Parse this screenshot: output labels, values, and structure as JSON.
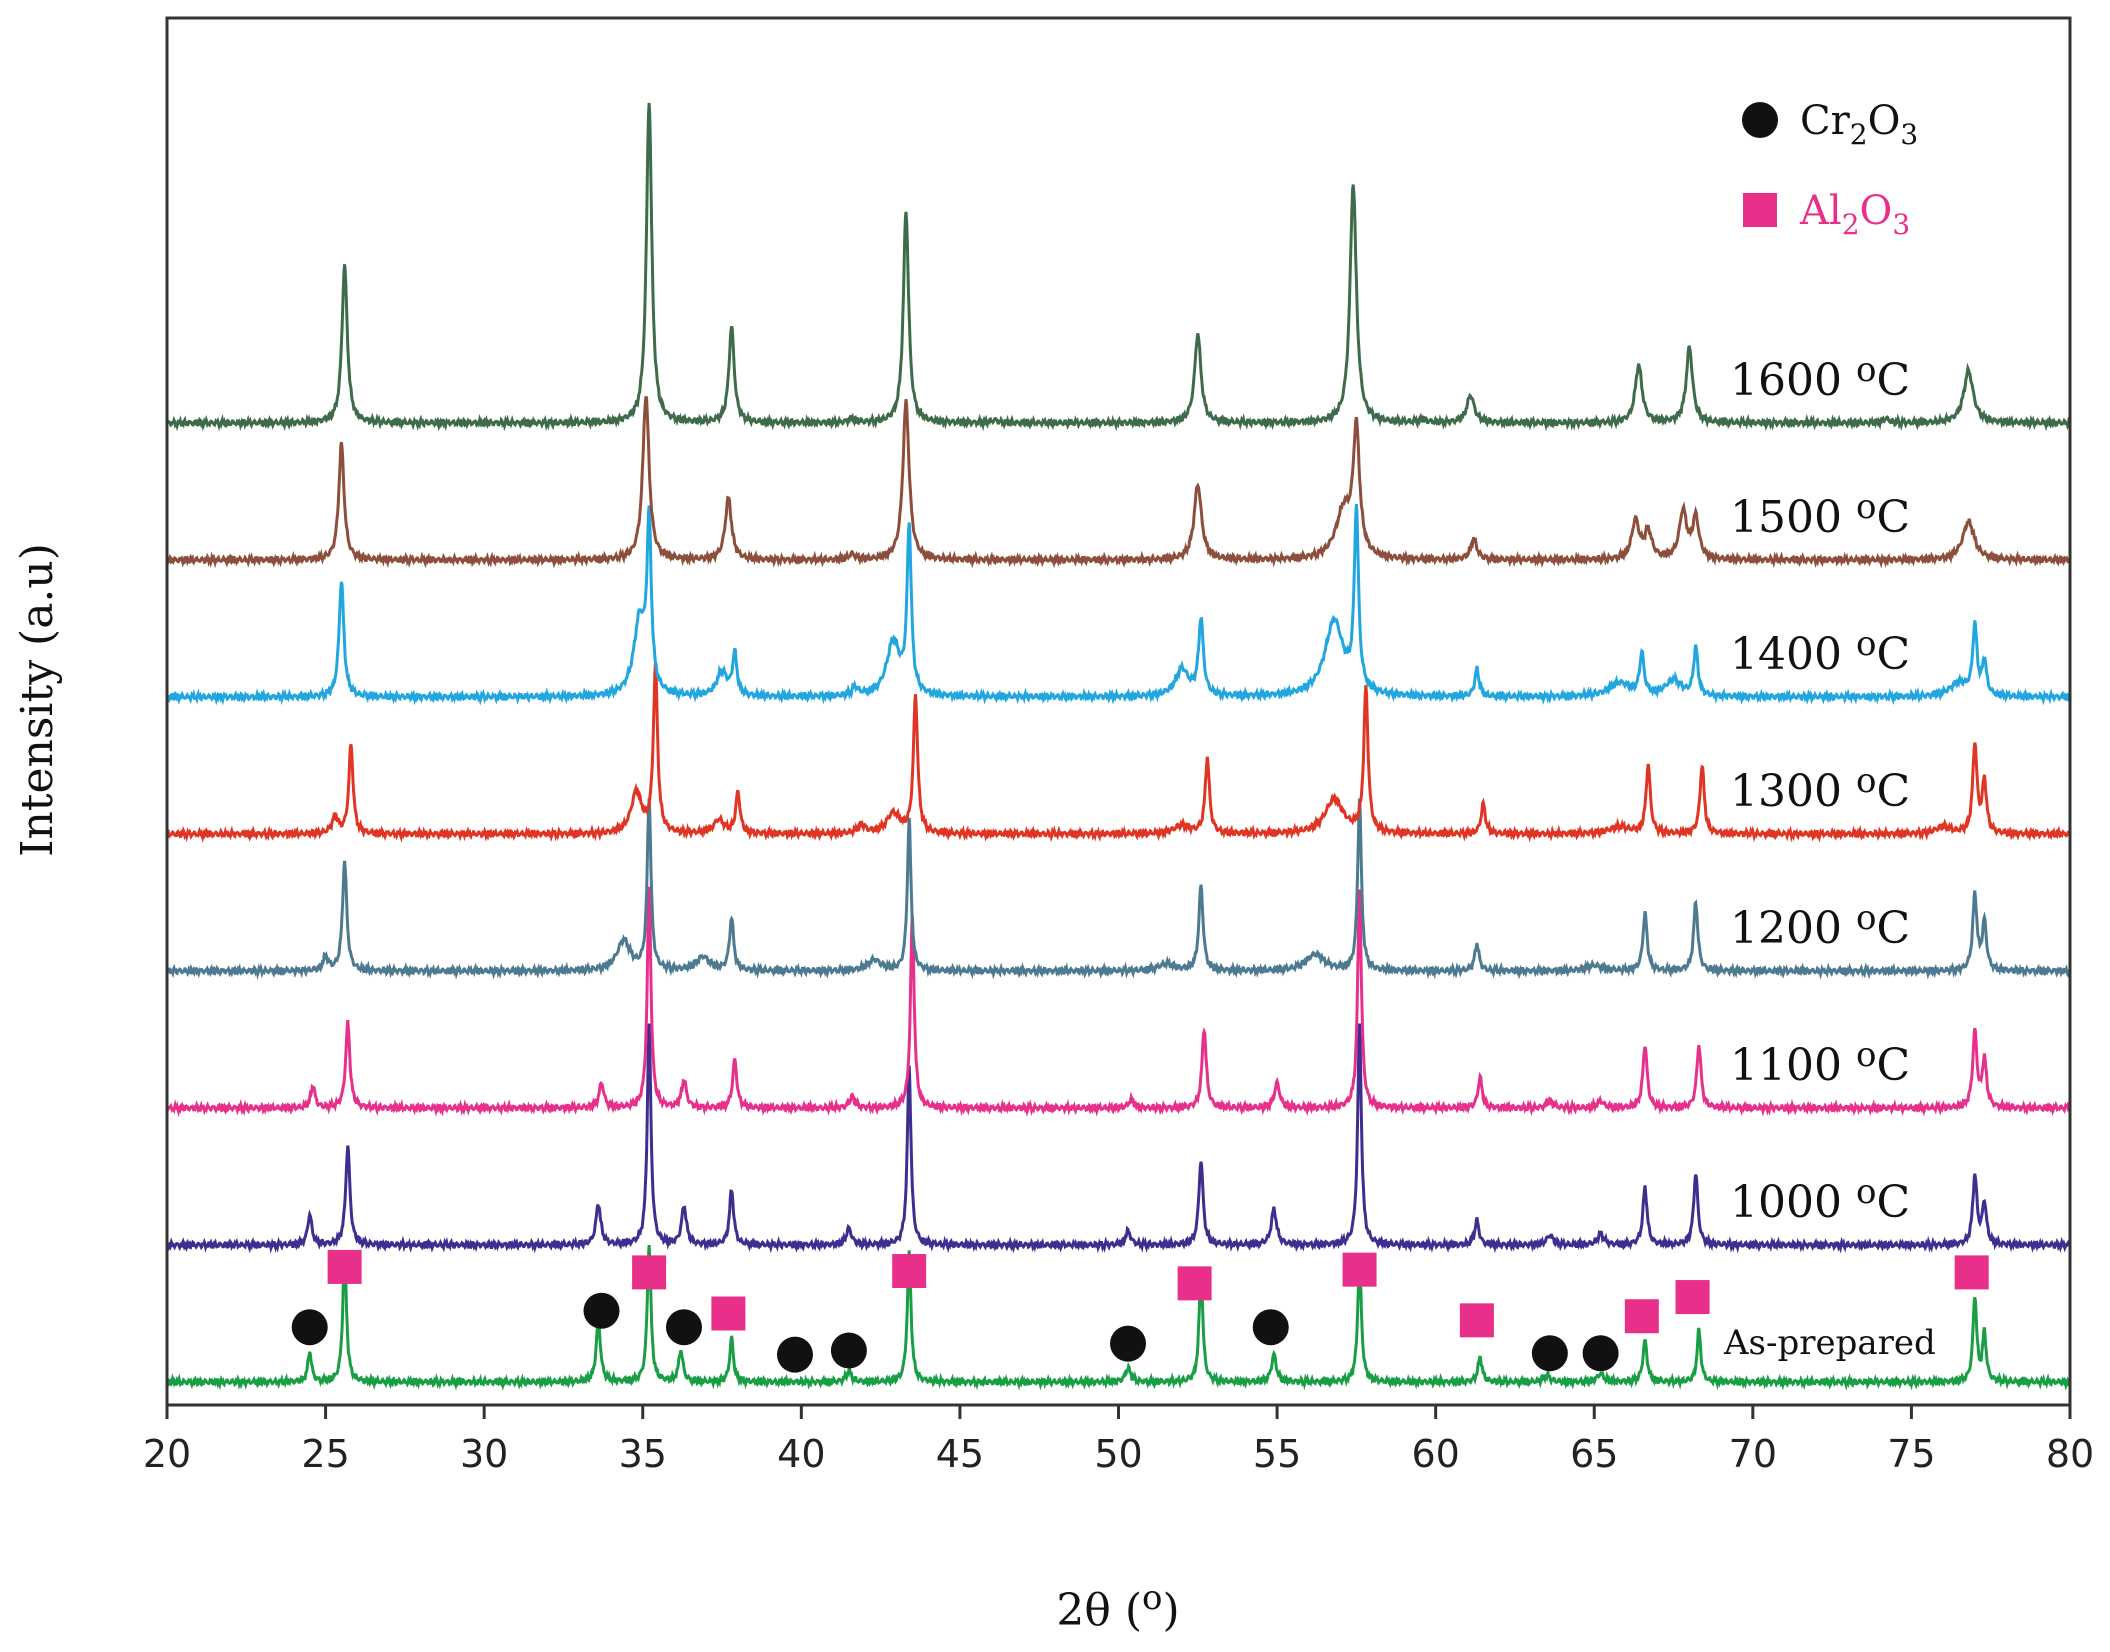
{
  "chart_data": {
    "type": "line",
    "title": "",
    "xlabel": "2θ (o)",
    "ylabel": "Intensity (a.u)",
    "xlim": [
      20,
      80
    ],
    "xticks": [
      20,
      25,
      30,
      35,
      40,
      45,
      50,
      55,
      60,
      65,
      70,
      75,
      80
    ],
    "ylim": [
      0,
      9.5
    ],
    "grid": false,
    "legend": {
      "position": "top-right",
      "entries": [
        {
          "marker": "circle",
          "color": "#111111",
          "base": "Cr",
          "sub1": "2",
          "mid": "O",
          "sub2": "3"
        },
        {
          "marker": "square",
          "color": "#e8308a",
          "base": "Al",
          "sub1": "2",
          "mid": "O",
          "sub2": "3"
        }
      ]
    },
    "series": [
      {
        "name": "As-prepared",
        "label": "As-prepared",
        "color": "#1a9e45",
        "offset": 0.0,
        "peaks": [
          [
            24.5,
            0.22,
            0.07
          ],
          [
            25.6,
            0.95,
            0.07
          ],
          [
            33.6,
            0.45,
            0.08
          ],
          [
            35.2,
            1.0,
            0.07
          ],
          [
            36.2,
            0.23,
            0.08
          ],
          [
            37.8,
            0.32,
            0.07
          ],
          [
            41.5,
            0.08,
            0.1
          ],
          [
            43.4,
            0.95,
            0.07
          ],
          [
            50.3,
            0.1,
            0.1
          ],
          [
            52.6,
            0.82,
            0.07
          ],
          [
            54.9,
            0.2,
            0.09
          ],
          [
            57.6,
            0.9,
            0.07
          ],
          [
            61.4,
            0.18,
            0.08
          ],
          [
            63.5,
            0.05,
            0.12
          ],
          [
            65.2,
            0.06,
            0.12
          ],
          [
            66.6,
            0.3,
            0.08
          ],
          [
            68.3,
            0.38,
            0.07
          ],
          [
            77.0,
            0.62,
            0.07
          ],
          [
            77.3,
            0.35,
            0.07
          ]
        ]
      },
      {
        "name": "1000 oC",
        "label": "1000",
        "unit": "oC",
        "color": "#3d2f8f",
        "offset": 1.0,
        "peaks": [
          [
            24.5,
            0.22,
            0.08
          ],
          [
            25.7,
            0.72,
            0.08
          ],
          [
            33.6,
            0.3,
            0.09
          ],
          [
            35.2,
            1.6,
            0.07
          ],
          [
            36.3,
            0.28,
            0.09
          ],
          [
            37.8,
            0.4,
            0.08
          ],
          [
            41.5,
            0.12,
            0.1
          ],
          [
            43.4,
            1.3,
            0.07
          ],
          [
            50.3,
            0.1,
            0.1
          ],
          [
            52.6,
            0.62,
            0.08
          ],
          [
            54.9,
            0.26,
            0.1
          ],
          [
            57.6,
            1.6,
            0.07
          ],
          [
            61.3,
            0.18,
            0.08
          ],
          [
            63.6,
            0.07,
            0.12
          ],
          [
            65.2,
            0.08,
            0.12
          ],
          [
            66.6,
            0.42,
            0.08
          ],
          [
            68.2,
            0.52,
            0.08
          ],
          [
            77.0,
            0.5,
            0.08
          ],
          [
            77.3,
            0.3,
            0.08
          ]
        ]
      },
      {
        "name": "1100 oC",
        "label": "1100",
        "unit": "oC",
        "color": "#e6308c",
        "offset": 2.0,
        "peaks": [
          [
            24.6,
            0.16,
            0.08
          ],
          [
            25.7,
            0.62,
            0.08
          ],
          [
            33.7,
            0.18,
            0.09
          ],
          [
            35.2,
            1.6,
            0.07
          ],
          [
            36.3,
            0.2,
            0.09
          ],
          [
            37.9,
            0.35,
            0.08
          ],
          [
            41.6,
            0.08,
            0.1
          ],
          [
            43.5,
            1.4,
            0.07
          ],
          [
            50.4,
            0.06,
            0.1
          ],
          [
            52.7,
            0.58,
            0.08
          ],
          [
            55.0,
            0.18,
            0.1
          ],
          [
            57.6,
            1.6,
            0.07
          ],
          [
            61.4,
            0.22,
            0.08
          ],
          [
            63.6,
            0.05,
            0.12
          ],
          [
            65.2,
            0.05,
            0.12
          ],
          [
            66.6,
            0.46,
            0.08
          ],
          [
            68.3,
            0.46,
            0.08
          ],
          [
            77.0,
            0.55,
            0.08
          ],
          [
            77.3,
            0.35,
            0.08
          ]
        ]
      },
      {
        "name": "1200 oC",
        "label": "1200",
        "unit": "oC",
        "color": "#4d7a91",
        "offset": 3.0,
        "peaks": [
          [
            25.0,
            0.1,
            0.1
          ],
          [
            25.6,
            0.8,
            0.08
          ],
          [
            34.4,
            0.22,
            0.25
          ],
          [
            35.2,
            1.25,
            0.07
          ],
          [
            36.9,
            0.1,
            0.25
          ],
          [
            37.8,
            0.38,
            0.08
          ],
          [
            42.3,
            0.08,
            0.25
          ],
          [
            43.4,
            1.1,
            0.07
          ],
          [
            51.5,
            0.05,
            0.3
          ],
          [
            52.6,
            0.62,
            0.08
          ],
          [
            56.2,
            0.12,
            0.35
          ],
          [
            57.6,
            1.25,
            0.07
          ],
          [
            61.3,
            0.2,
            0.08
          ],
          [
            65.0,
            0.04,
            0.3
          ],
          [
            66.6,
            0.42,
            0.08
          ],
          [
            68.2,
            0.5,
            0.08
          ],
          [
            77.0,
            0.55,
            0.08
          ],
          [
            77.3,
            0.35,
            0.08
          ]
        ]
      },
      {
        "name": "1300 oC",
        "label": "1300",
        "unit": "oC",
        "color": "#e03525",
        "offset": 4.0,
        "peaks": [
          [
            25.3,
            0.12,
            0.12
          ],
          [
            25.8,
            0.65,
            0.08
          ],
          [
            34.8,
            0.3,
            0.2
          ],
          [
            35.4,
            1.2,
            0.08
          ],
          [
            37.4,
            0.1,
            0.2
          ],
          [
            38.0,
            0.3,
            0.08
          ],
          [
            41.9,
            0.06,
            0.15
          ],
          [
            42.9,
            0.15,
            0.25
          ],
          [
            43.6,
            1.0,
            0.08
          ],
          [
            52.0,
            0.06,
            0.3
          ],
          [
            52.8,
            0.55,
            0.08
          ],
          [
            56.8,
            0.25,
            0.35
          ],
          [
            57.8,
            1.05,
            0.08
          ],
          [
            61.5,
            0.22,
            0.08
          ],
          [
            65.8,
            0.05,
            0.4
          ],
          [
            66.7,
            0.5,
            0.08
          ],
          [
            68.4,
            0.5,
            0.08
          ],
          [
            76.0,
            0.05,
            0.3
          ],
          [
            77.0,
            0.65,
            0.08
          ],
          [
            77.3,
            0.38,
            0.08
          ]
        ]
      },
      {
        "name": "1400 oC",
        "label": "1400",
        "unit": "oC",
        "color": "#22a6e0",
        "offset": 5.0,
        "peaks": [
          [
            25.5,
            0.85,
            0.09
          ],
          [
            34.9,
            0.55,
            0.22
          ],
          [
            35.2,
            1.2,
            0.08
          ],
          [
            37.5,
            0.18,
            0.2
          ],
          [
            37.9,
            0.3,
            0.08
          ],
          [
            41.7,
            0.06,
            0.12
          ],
          [
            42.9,
            0.4,
            0.25
          ],
          [
            43.4,
            1.2,
            0.08
          ],
          [
            52.0,
            0.2,
            0.25
          ],
          [
            52.6,
            0.55,
            0.09
          ],
          [
            56.8,
            0.55,
            0.35
          ],
          [
            57.5,
            1.3,
            0.08
          ],
          [
            61.3,
            0.2,
            0.08
          ],
          [
            65.8,
            0.1,
            0.4
          ],
          [
            66.5,
            0.3,
            0.08
          ],
          [
            67.5,
            0.12,
            0.3
          ],
          [
            68.2,
            0.35,
            0.08
          ],
          [
            76.5,
            0.1,
            0.35
          ],
          [
            77.0,
            0.5,
            0.08
          ],
          [
            77.3,
            0.25,
            0.08
          ]
        ]
      },
      {
        "name": "1500 oC",
        "label": "1500",
        "unit": "oC",
        "color": "#8d4f3c",
        "offset": 6.0,
        "peaks": [
          [
            25.5,
            0.85,
            0.1
          ],
          [
            35.1,
            1.2,
            0.12
          ],
          [
            37.7,
            0.45,
            0.12
          ],
          [
            41.6,
            0.04,
            0.12
          ],
          [
            43.3,
            1.15,
            0.12
          ],
          [
            52.5,
            0.55,
            0.14
          ],
          [
            57.1,
            0.35,
            0.3
          ],
          [
            57.5,
            0.9,
            0.12
          ],
          [
            61.2,
            0.15,
            0.12
          ],
          [
            66.3,
            0.28,
            0.14
          ],
          [
            66.7,
            0.2,
            0.14
          ],
          [
            67.8,
            0.35,
            0.14
          ],
          [
            68.2,
            0.3,
            0.12
          ],
          [
            76.8,
            0.28,
            0.22
          ]
        ]
      },
      {
        "name": "1600 oC",
        "label": "1600",
        "unit": "oC",
        "color": "#3e6b4a",
        "offset": 7.0,
        "peaks": [
          [
            25.6,
            1.15,
            0.1
          ],
          [
            35.2,
            2.35,
            0.1
          ],
          [
            37.8,
            0.7,
            0.1
          ],
          [
            41.6,
            0.03,
            0.12
          ],
          [
            43.3,
            1.55,
            0.1
          ],
          [
            46.1,
            0.02,
            0.12
          ],
          [
            52.5,
            0.65,
            0.12
          ],
          [
            57.4,
            1.75,
            0.12
          ],
          [
            59.6,
            0.02,
            0.15
          ],
          [
            61.1,
            0.2,
            0.14
          ],
          [
            66.4,
            0.42,
            0.13
          ],
          [
            68.0,
            0.55,
            0.12
          ],
          [
            74.2,
            0.03,
            0.12
          ],
          [
            76.8,
            0.38,
            0.18
          ]
        ]
      }
    ],
    "phase_markers": {
      "Cr2O3": {
        "marker": "circle",
        "color": "#111111",
        "positions": [
          [
            24.5,
            0.4
          ],
          [
            33.7,
            0.52
          ],
          [
            36.3,
            0.4
          ],
          [
            39.8,
            0.2
          ],
          [
            41.5,
            0.23
          ],
          [
            50.3,
            0.28
          ],
          [
            54.8,
            0.4
          ],
          [
            63.6,
            0.21
          ],
          [
            65.2,
            0.21
          ]
        ]
      },
      "Al2O3": {
        "marker": "square",
        "color": "#e8308a",
        "positions": [
          [
            25.6,
            0.84
          ],
          [
            35.2,
            0.8
          ],
          [
            37.7,
            0.5
          ],
          [
            43.4,
            0.81
          ],
          [
            52.4,
            0.72
          ],
          [
            57.6,
            0.82
          ],
          [
            61.3,
            0.45
          ],
          [
            66.5,
            0.48
          ],
          [
            68.1,
            0.62
          ],
          [
            76.9,
            0.8
          ]
        ]
      }
    }
  }
}
